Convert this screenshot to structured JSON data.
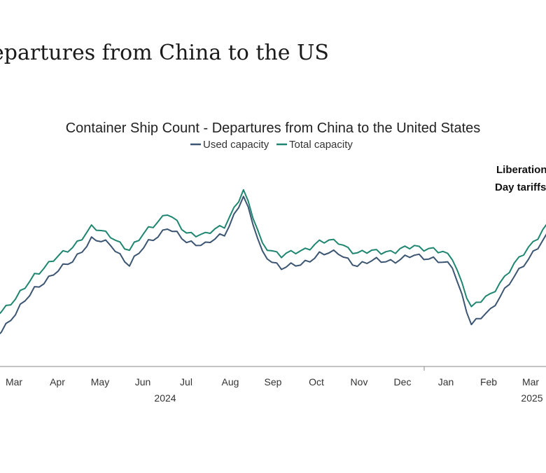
{
  "page_title": "Departures from China to the US",
  "chart_data": {
    "type": "line",
    "title": "Container Ship Count - Departures from China to the United States",
    "xlabel": "",
    "ylabel": "",
    "grid": false,
    "legend_position": "top-center",
    "x_tick_labels": [
      "Mar",
      "Apr",
      "May",
      "Jun",
      "Jul",
      "Aug",
      "Sep",
      "Oct",
      "Nov",
      "Dec",
      "Jan",
      "Feb",
      "Mar"
    ],
    "year_labels": [
      "2024",
      "2025"
    ],
    "annotation": [
      "Liberation",
      "Day tariffs"
    ],
    "colors": {
      "used": "#3b5572",
      "total": "#1e8670"
    },
    "x": [
      "2024-02-26",
      "2024-03-11",
      "2024-03-25",
      "2024-04-08",
      "2024-04-22",
      "2024-05-06",
      "2024-05-20",
      "2024-06-03",
      "2024-06-17",
      "2024-07-01",
      "2024-07-15",
      "2024-07-29",
      "2024-08-12",
      "2024-08-26",
      "2024-09-09",
      "2024-09-23",
      "2024-10-07",
      "2024-10-21",
      "2024-11-04",
      "2024-11-18",
      "2024-12-02",
      "2024-12-16",
      "2024-12-30",
      "2025-01-13",
      "2025-01-27",
      "2025-02-10",
      "2025-02-24",
      "2025-03-10",
      "2025-03-24",
      "2025-04-07"
    ],
    "series": [
      {
        "name": "Used capacity",
        "values": [
          20,
          29,
          40,
          46,
          52,
          61,
          59,
          50,
          60,
          66,
          60,
          59,
          63,
          80,
          55,
          49,
          50,
          55,
          55,
          50,
          52,
          52,
          54,
          53,
          49,
          25,
          30,
          43,
          52,
          64
        ]
      },
      {
        "name": "Total capacity",
        "values": [
          29,
          35,
          46,
          52,
          58,
          66,
          63,
          56,
          66,
          72,
          64,
          63,
          67,
          82,
          59,
          54,
          56,
          60,
          60,
          55,
          56,
          56,
          58,
          57,
          53,
          32,
          37,
          48,
          57,
          68
        ]
      }
    ]
  }
}
